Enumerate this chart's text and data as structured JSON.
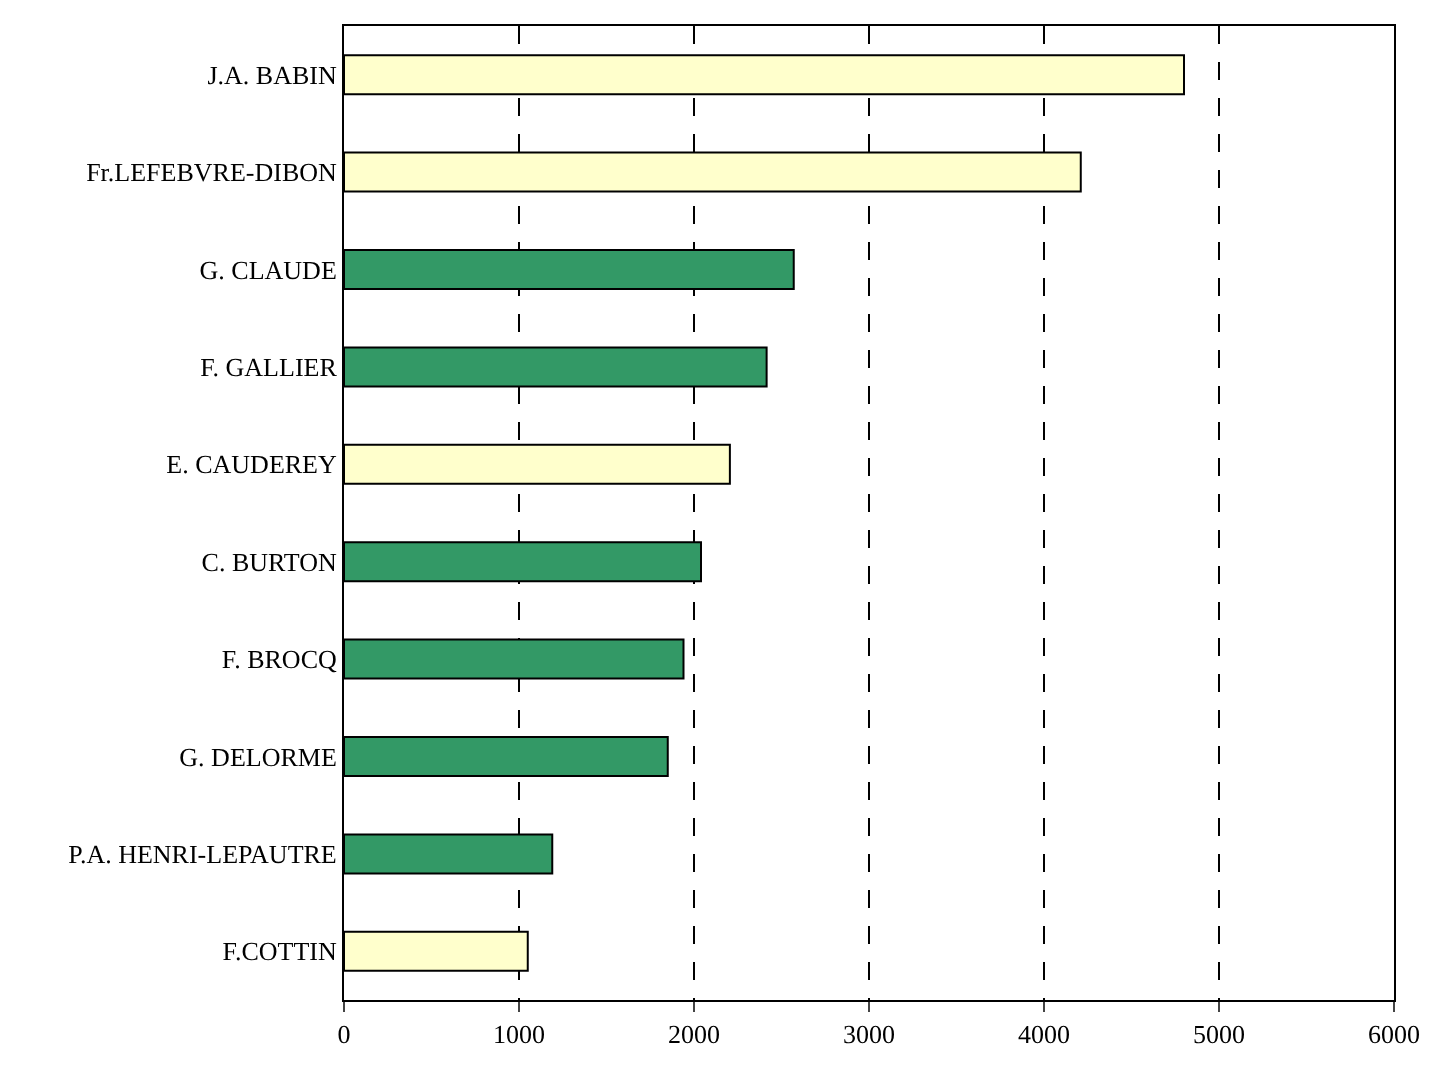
{
  "chart_data": {
    "type": "bar",
    "orientation": "horizontal",
    "categories": [
      "J.A. BABIN",
      "Fr.LEFEBVRE-DIBON",
      "G. CLAUDE",
      "F. GALLIER",
      "E. CAUDEREY",
      "C. BURTON",
      "F. BROCQ",
      "G. DELORME",
      "P.A. HENRI-LEPAUTRE",
      "F.COTTIN"
    ],
    "values": [
      4800,
      4210,
      2570,
      2415,
      2205,
      2040,
      1940,
      1850,
      1190,
      1050
    ],
    "colors": [
      "#ffffcc",
      "#ffffcc",
      "#339966",
      "#339966",
      "#ffffcc",
      "#339966",
      "#339966",
      "#339966",
      "#339966",
      "#ffffcc"
    ],
    "xlim": [
      0,
      6000
    ],
    "xticks": [
      0,
      1000,
      2000,
      3000,
      4000,
      5000,
      6000
    ],
    "grid": "x",
    "line_style": "dashed",
    "legend": false
  }
}
